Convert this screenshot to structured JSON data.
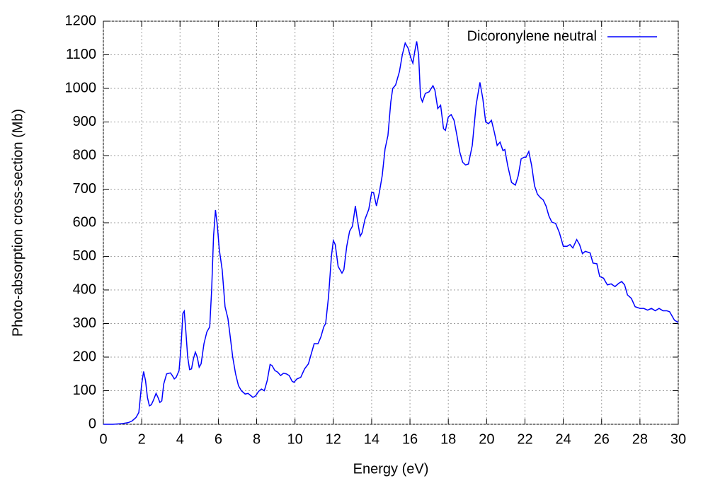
{
  "chart_data": {
    "type": "line",
    "xlabel": "Energy (eV)",
    "ylabel": "Photo-absorption cross-section (Mb)",
    "x": [
      0,
      0.5,
      1.0,
      1.3,
      1.5,
      1.7,
      1.85,
      2.0,
      2.1,
      2.2,
      2.3,
      2.4,
      2.5,
      2.6,
      2.75,
      2.85,
      2.95,
      3.05,
      3.15,
      3.3,
      3.5,
      3.6,
      3.7,
      3.8,
      3.95,
      4.05,
      4.15,
      4.22,
      4.3,
      4.4,
      4.5,
      4.6,
      4.7,
      4.8,
      4.9,
      5.0,
      5.1,
      5.25,
      5.4,
      5.55,
      5.65,
      5.75,
      5.85,
      5.95,
      6.05,
      6.2,
      6.35,
      6.5,
      6.6,
      6.75,
      6.9,
      7.05,
      7.2,
      7.4,
      7.55,
      7.7,
      7.8,
      7.95,
      8.1,
      8.25,
      8.4,
      8.55,
      8.7,
      8.8,
      8.95,
      9.1,
      9.25,
      9.4,
      9.55,
      9.7,
      9.85,
      9.95,
      10.1,
      10.3,
      10.5,
      10.7,
      10.9,
      11.0,
      11.2,
      11.35,
      11.5,
      11.6,
      11.75,
      11.9,
      12.0,
      12.1,
      12.25,
      12.45,
      12.55,
      12.7,
      12.85,
      13.0,
      13.15,
      13.25,
      13.4,
      13.5,
      13.65,
      13.85,
      14.0,
      14.1,
      14.25,
      14.4,
      14.55,
      14.7,
      14.85,
      15.0,
      15.1,
      15.25,
      15.45,
      15.6,
      15.75,
      15.9,
      16.05,
      16.15,
      16.25,
      16.35,
      16.45,
      16.55,
      16.65,
      16.8,
      17.0,
      17.2,
      17.3,
      17.45,
      17.6,
      17.75,
      17.85,
      18.0,
      18.15,
      18.3,
      18.45,
      18.6,
      18.75,
      18.9,
      19.05,
      19.25,
      19.45,
      19.65,
      19.8,
      19.95,
      20.1,
      20.25,
      20.4,
      20.55,
      20.7,
      20.85,
      20.95,
      21.1,
      21.3,
      21.5,
      21.65,
      21.8,
      21.95,
      22.05,
      22.2,
      22.35,
      22.5,
      22.65,
      22.8,
      22.95,
      23.1,
      23.25,
      23.4,
      23.6,
      23.8,
      24.0,
      24.2,
      24.35,
      24.5,
      24.7,
      24.85,
      25.0,
      25.15,
      25.4,
      25.55,
      25.75,
      25.9,
      26.1,
      26.3,
      26.5,
      26.7,
      26.9,
      27.05,
      27.2,
      27.35,
      27.55,
      27.75,
      28.0,
      28.2,
      28.4,
      28.6,
      28.8,
      29.0,
      29.2,
      29.4,
      29.55,
      29.8,
      30.0
    ],
    "series": [
      {
        "name": "Dicoronylene neutral",
        "color": "#0000ff",
        "values": [
          0,
          0,
          2,
          5,
          10,
          20,
          35,
          120,
          157,
          130,
          80,
          55,
          58,
          70,
          92,
          80,
          65,
          70,
          120,
          150,
          153,
          145,
          135,
          140,
          160,
          230,
          330,
          337,
          280,
          200,
          163,
          165,
          195,
          215,
          200,
          170,
          180,
          240,
          275,
          290,
          400,
          560,
          638,
          590,
          520,
          460,
          350,
          315,
          270,
          200,
          150,
          115,
          100,
          90,
          92,
          85,
          80,
          85,
          98,
          105,
          100,
          130,
          178,
          175,
          160,
          155,
          145,
          152,
          150,
          145,
          128,
          125,
          135,
          140,
          165,
          180,
          220,
          240,
          240,
          260,
          290,
          300,
          380,
          500,
          547,
          535,
          470,
          450,
          460,
          530,
          575,
          590,
          650,
          610,
          560,
          570,
          610,
          640,
          690,
          690,
          650,
          690,
          740,
          820,
          860,
          960,
          1000,
          1010,
          1050,
          1100,
          1135,
          1120,
          1090,
          1075,
          1110,
          1140,
          1100,
          975,
          960,
          985,
          990,
          1008,
          995,
          940,
          950,
          880,
          875,
          915,
          922,
          905,
          860,
          810,
          780,
          772,
          775,
          830,
          950,
          1018,
          970,
          900,
          895,
          905,
          870,
          830,
          840,
          815,
          818,
          770,
          720,
          712,
          740,
          790,
          795,
          795,
          812,
          770,
          710,
          685,
          675,
          668,
          650,
          620,
          602,
          598,
          570,
          530,
          530,
          535,
          525,
          550,
          535,
          508,
          515,
          510,
          480,
          478,
          440,
          435,
          415,
          418,
          410,
          420,
          425,
          415,
          385,
          375,
          350,
          345,
          345,
          340,
          345,
          338,
          345,
          338,
          338,
          335,
          310,
          303
        ]
      }
    ],
    "xlim": [
      0,
      30
    ],
    "xticks": [
      0,
      2,
      4,
      6,
      8,
      10,
      12,
      14,
      16,
      18,
      20,
      22,
      24,
      26,
      28,
      30
    ],
    "ylim": [
      0,
      1200
    ],
    "yticks": [
      0,
      100,
      200,
      300,
      400,
      500,
      600,
      700,
      800,
      900,
      1000,
      1100,
      1200
    ],
    "grid": true,
    "legend": "upper right"
  }
}
